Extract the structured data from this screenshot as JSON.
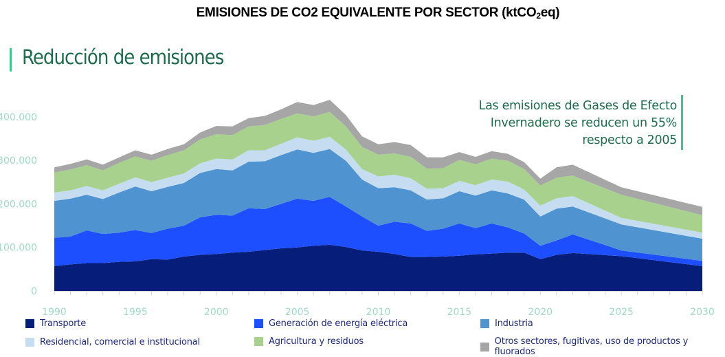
{
  "header": {
    "title_main": "EMISIONES DE CO2 EQUIVALENTE POR SECTOR (ktCO",
    "title_sub": "2",
    "title_end": "eq)",
    "section_title": "Reducción de emisiones"
  },
  "annotation": {
    "lines": [
      "Las emisiones de Gases de Efecto",
      "Invernadero se reducen un 55%",
      "respecto a 2005"
    ]
  },
  "chart_data": {
    "type": "area",
    "stacked": true,
    "title": "EMISIONES DE CO2 EQUIVALENTE POR SECTOR (ktCO2eq)",
    "xlabel": "",
    "ylabel": "",
    "ylim": [
      0,
      450000
    ],
    "xlim": [
      1990,
      2030
    ],
    "yticks": [
      0,
      100000,
      200000,
      300000,
      400000
    ],
    "ytick_labels": [
      "0",
      "100.000",
      "200.000",
      "300.000",
      "400.000"
    ],
    "xticks": [
      1990,
      1995,
      2000,
      2005,
      2010,
      2015,
      2020,
      2025,
      2030
    ],
    "xtick_labels": [
      "1990",
      "1995",
      "2000",
      "2005",
      "2010",
      "2015",
      "2020",
      "2025",
      "2030"
    ],
    "grid": false,
    "legend_position": "bottom",
    "x": [
      1990,
      1991,
      1992,
      1993,
      1994,
      1995,
      1996,
      1997,
      1998,
      1999,
      2000,
      2001,
      2002,
      2003,
      2004,
      2005,
      2006,
      2007,
      2008,
      2009,
      2010,
      2011,
      2012,
      2013,
      2014,
      2015,
      2016,
      2017,
      2018,
      2019,
      2020,
      2021,
      2022,
      2025,
      2030
    ],
    "series": [
      {
        "name": "Transporte",
        "color": "#061e7a",
        "values": [
          57000,
          61000,
          64000,
          64000,
          67000,
          68000,
          73000,
          72000,
          79000,
          83000,
          85000,
          88000,
          90000,
          94000,
          98000,
          100000,
          104000,
          106000,
          101000,
          93000,
          90000,
          85000,
          78000,
          78000,
          79000,
          81000,
          84000,
          86000,
          88000,
          88000,
          73000,
          83000,
          87000,
          80000,
          57000
        ]
      },
      {
        "name": "Generación de energía eléctrica",
        "color": "#1e4fff",
        "values": [
          65000,
          64000,
          75000,
          67000,
          67000,
          72000,
          60000,
          71000,
          71000,
          86000,
          90000,
          85000,
          100000,
          94000,
          102000,
          112000,
          103000,
          110000,
          93000,
          78000,
          60000,
          74000,
          77000,
          60000,
          64000,
          74000,
          60000,
          69000,
          58000,
          44000,
          31000,
          33000,
          43000,
          13000,
          12000
        ]
      },
      {
        "name": "Industria",
        "color": "#4f93d0",
        "values": [
          85000,
          87000,
          82000,
          80000,
          92000,
          100000,
          96000,
          96000,
          98000,
          102000,
          105000,
          104000,
          107000,
          110000,
          112000,
          113000,
          110000,
          110000,
          105000,
          85000,
          86000,
          79000,
          76000,
          72000,
          70000,
          74000,
          75000,
          76000,
          78000,
          78000,
          67000,
          73000,
          64000,
          60000,
          51000
        ]
      },
      {
        "name": "Residencial, comercial e institucional",
        "color": "#c6dcf1",
        "values": [
          19000,
          19000,
          20000,
          20000,
          20000,
          21000,
          21000,
          21000,
          22000,
          22000,
          24000,
          25000,
          26000,
          25000,
          26000,
          28000,
          28000,
          28000,
          26000,
          24000,
          27000,
          29000,
          28000,
          25000,
          23000,
          24000,
          24000,
          25000,
          27000,
          23000,
          25000,
          24000,
          24000,
          15000,
          14000
        ]
      },
      {
        "name": "Agricultura y residuos",
        "color": "#a8d18e",
        "values": [
          46000,
          48000,
          48000,
          46000,
          48000,
          48000,
          49000,
          52000,
          53000,
          55000,
          56000,
          56000,
          55000,
          58000,
          57000,
          55000,
          56000,
          57000,
          53000,
          51000,
          50000,
          49000,
          49000,
          46000,
          46000,
          48000,
          48000,
          48000,
          48000,
          47000,
          46000,
          47000,
          47000,
          53000,
          40000
        ]
      },
      {
        "name": "Otros sectores, fugitivas, uso de productos y fluorados",
        "color": "#a6a6a6",
        "values": [
          12000,
          13000,
          13000,
          13000,
          13000,
          14000,
          14000,
          14000,
          14000,
          16000,
          19000,
          20000,
          19000,
          21000,
          22000,
          26000,
          26000,
          28000,
          26000,
          24000,
          24000,
          26000,
          27000,
          26000,
          25000,
          18000,
          17000,
          17000,
          16000,
          16000,
          16000,
          24000,
          25000,
          17000,
          19000
        ]
      }
    ]
  },
  "legend": [
    {
      "label": "Transporte",
      "color": "#061e7a"
    },
    {
      "label": "Generación de energía eléctrica",
      "color": "#1e4fff"
    },
    {
      "label": "Industria",
      "color": "#4f93d0"
    },
    {
      "label": "Residencial, comercial e institucional",
      "color": "#c6dcf1"
    },
    {
      "label": "Agricultura y residuos",
      "color": "#a8d18e"
    },
    {
      "label": "Otros sectores, fugitivas, uso de productos y fluorados",
      "color": "#a6a6a6"
    }
  ],
  "colors": {
    "accent_green": "#3cc68a",
    "title_green": "#1f6b4e",
    "tick_label": "#9fd9c4",
    "legend_text": "#1e2a78"
  }
}
